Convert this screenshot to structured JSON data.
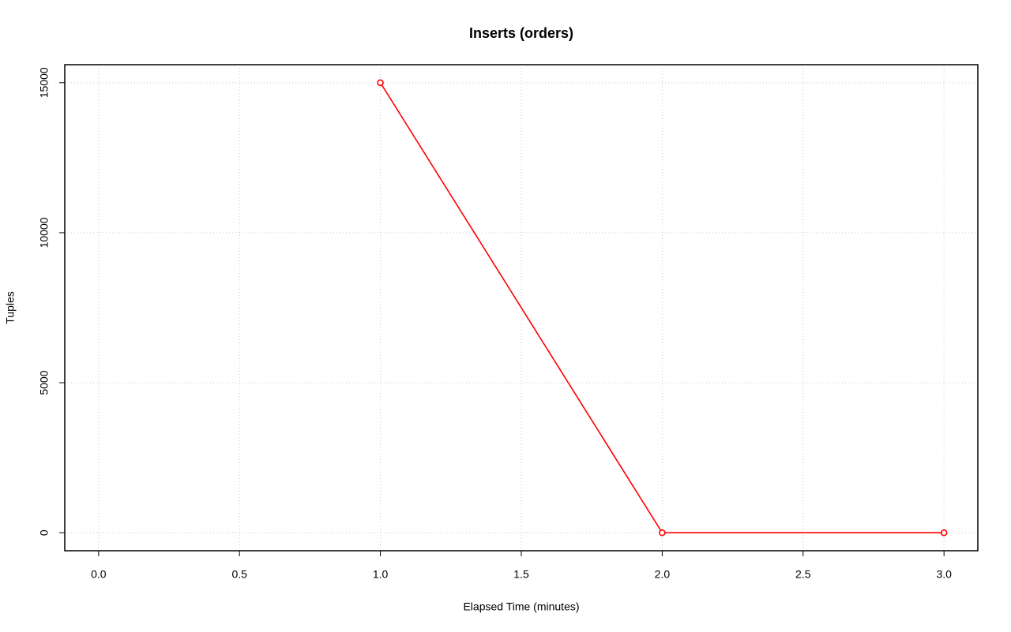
{
  "chart_data": {
    "type": "line",
    "title": "Inserts (orders)",
    "xlabel": "Elapsed Time (minutes)",
    "ylabel": "Tuples",
    "x": [
      1,
      2,
      3
    ],
    "series": [
      {
        "color": "#ff0000",
        "values": [
          15000,
          0,
          0
        ]
      }
    ],
    "xlim": [
      -0.12,
      3.12
    ],
    "ylim": [
      -600,
      15600
    ],
    "xticks": [
      {
        "value": 0,
        "label": "0.0"
      },
      0.5,
      {
        "value": 1,
        "label": "1.0"
      },
      1.5,
      {
        "value": 2,
        "label": "2.0"
      },
      2.5,
      {
        "value": 3,
        "label": "3.0"
      }
    ],
    "yticks": [
      0,
      5000,
      10000,
      15000
    ],
    "grid": true
  }
}
